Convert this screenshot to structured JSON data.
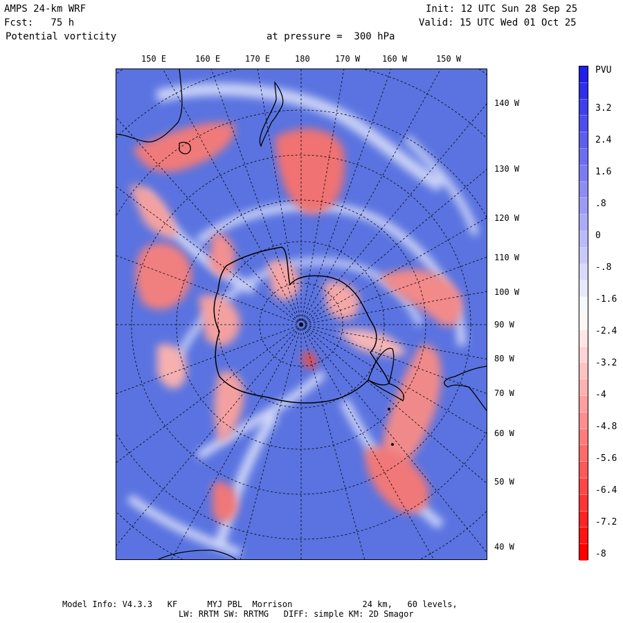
{
  "header": {
    "model": "AMPS 24-km WRF",
    "fcst": "Fcst:   75 h",
    "field": "Potential vorticity",
    "pressure": "at pressure =  300 hPa",
    "init": "Init: 12 UTC Sun 28 Sep 25",
    "valid": "Valid: 15 UTC Wed 01 Oct 25"
  },
  "top_longitudes": [
    "150 E",
    "160 E",
    "170 E",
    "180",
    "170 W",
    "160 W",
    "150 W"
  ],
  "right_longitudes": [
    "140 W",
    "130 W",
    "120 W",
    "110 W",
    "100 W",
    "90 W",
    "80 W",
    "70 W",
    "60 W",
    "50 W",
    "40 W"
  ],
  "colorbar": {
    "unit": "PVU",
    "labels": [
      "3.2",
      "2.4",
      "1.6",
      ".8",
      "0",
      "-.8",
      "-1.6",
      "-2.4",
      "-3.2",
      "-4",
      "-4.8",
      "-5.6",
      "-6.4",
      "-7.2",
      "-8"
    ],
    "min": -8,
    "max": 4,
    "color_high": "#2020e8",
    "color_mid": "#ffffff",
    "color_low": "#ff0000"
  },
  "footer": {
    "line1": "Model Info: V4.3.3   KF      MYJ PBL  Morrison              24 km,   60 levels,",
    "line2": "LW: RRTM SW: RRTMG   DIFF: simple KM: 2D Smagor"
  },
  "colors": {
    "background_pv": "#5a73e0",
    "positive_pv": "#f08080",
    "coast": "#000000"
  }
}
